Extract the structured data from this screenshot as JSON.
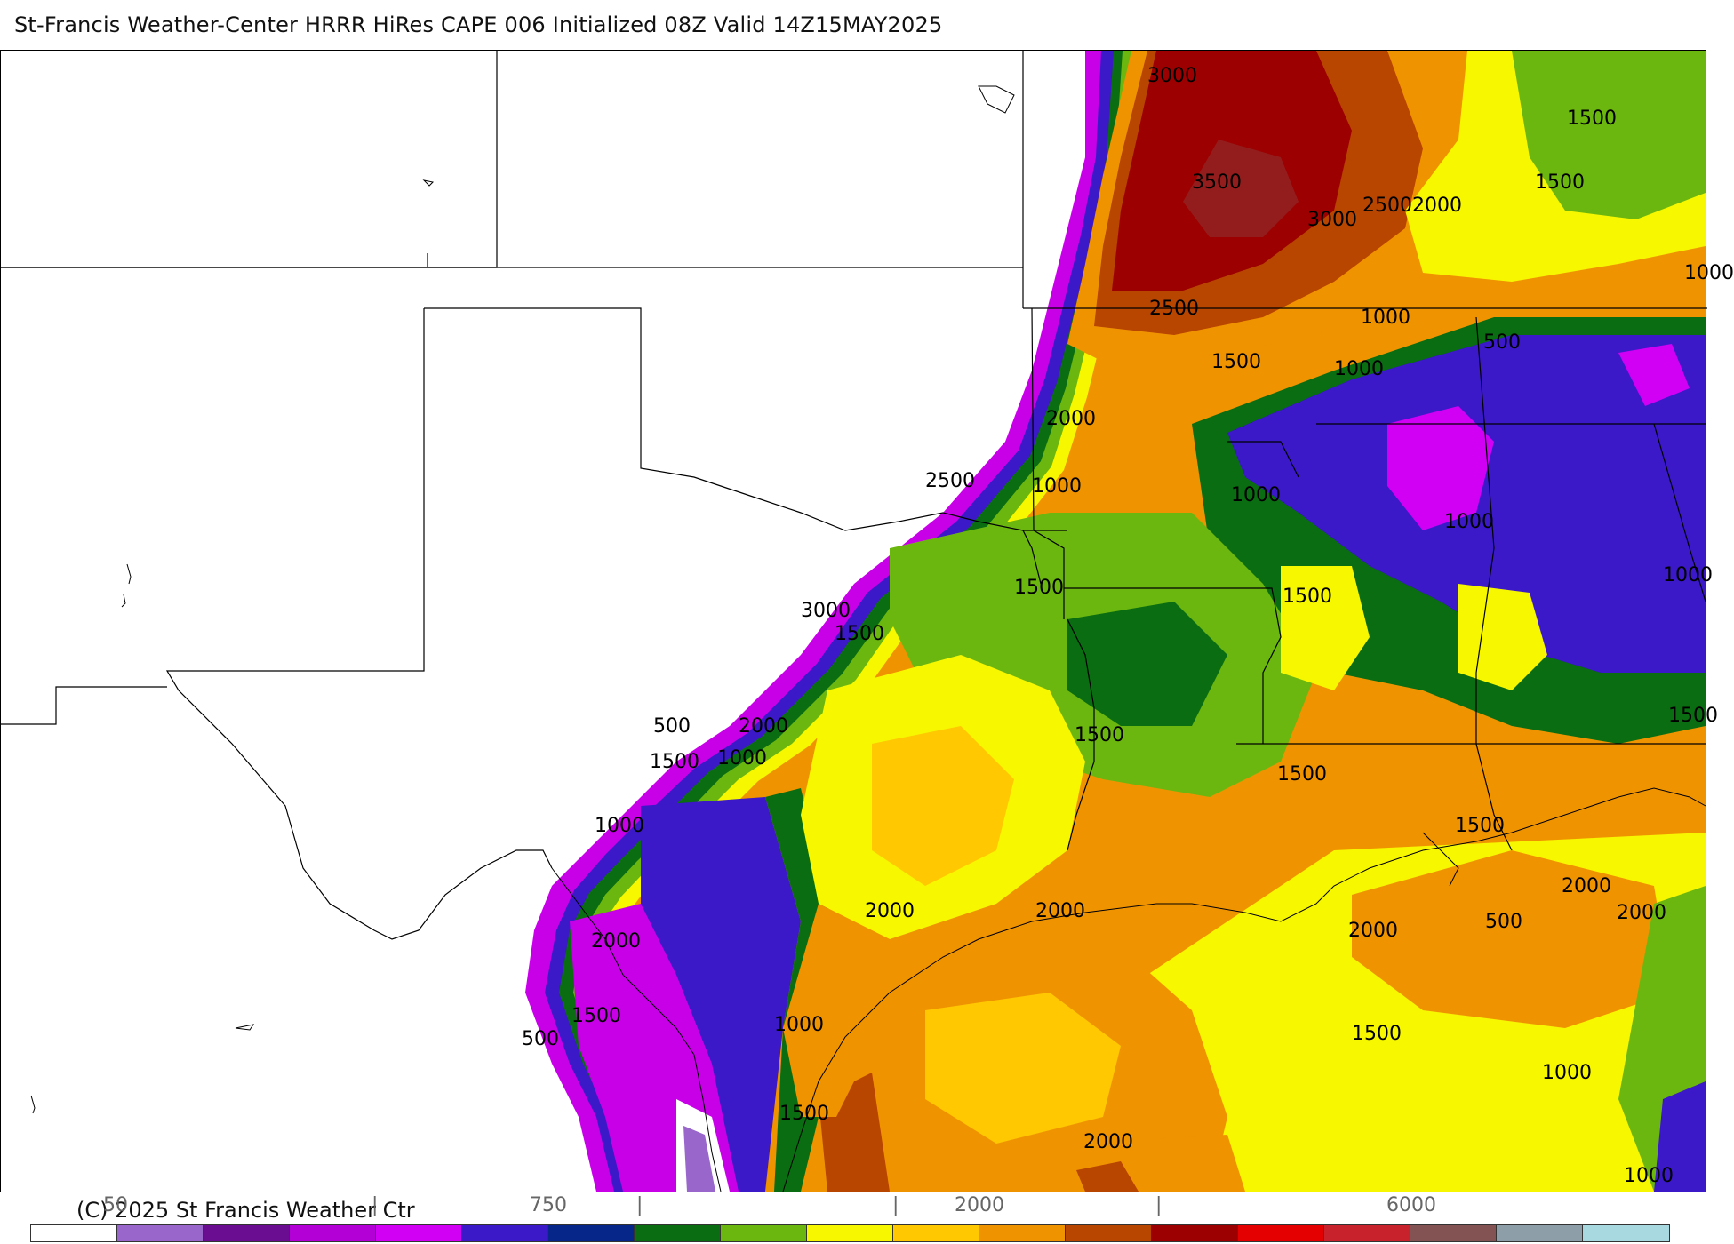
{
  "header": {
    "title": "St-Francis Weather-Center HRRR HiRes CAPE  006 Initialized  08Z Valid 14Z15MAY2025"
  },
  "map": {
    "product": "HRRR HiRes CAPE",
    "contour_labels": [
      {
        "text": "3000"
      },
      {
        "text": "3500"
      },
      {
        "text": "3000"
      },
      {
        "text": "2500"
      },
      {
        "text": "2000"
      },
      {
        "text": "1500"
      },
      {
        "text": "1500"
      },
      {
        "text": "1000"
      },
      {
        "text": "2500"
      },
      {
        "text": "1000"
      },
      {
        "text": "1000"
      },
      {
        "text": "1500"
      },
      {
        "text": "500"
      },
      {
        "text": "2000"
      },
      {
        "text": "1000"
      },
      {
        "text": "2500"
      },
      {
        "text": "1000"
      },
      {
        "text": "1000"
      },
      {
        "text": "1500"
      },
      {
        "text": "1500"
      },
      {
        "text": "3000"
      },
      {
        "text": "1500"
      },
      {
        "text": "1000"
      },
      {
        "text": "500"
      },
      {
        "text": "2000"
      },
      {
        "text": "1500"
      },
      {
        "text": "1000"
      },
      {
        "text": "1500"
      },
      {
        "text": "1500"
      },
      {
        "text": "1500"
      },
      {
        "text": "1000"
      },
      {
        "text": "1500"
      },
      {
        "text": "2000"
      },
      {
        "text": "2000"
      },
      {
        "text": "2000"
      },
      {
        "text": "2000"
      },
      {
        "text": "2000"
      },
      {
        "text": "500"
      },
      {
        "text": "2000"
      },
      {
        "text": "1000"
      },
      {
        "text": "500"
      },
      {
        "text": "1500"
      },
      {
        "text": "1000"
      },
      {
        "text": "1500"
      },
      {
        "text": "1500"
      },
      {
        "text": "2000"
      },
      {
        "text": "1000"
      }
    ]
  },
  "footer": {
    "copyright": "(C) 2025 St Francis Weather Ctr",
    "tick_labels": [
      "50",
      "|",
      "750",
      "|",
      "|",
      "2000",
      "|",
      "6000"
    ]
  },
  "legend": {
    "colors": [
      "#ffffff",
      "#9966cc",
      "#6a0d91",
      "#b300d6",
      "#d100f5",
      "#3b18c8",
      "#06268a",
      "#0a6d12",
      "#6cb70f",
      "#f7f700",
      "#ffc800",
      "#f09300",
      "#b84500",
      "#9c0000",
      "#e40000",
      "#c8232c",
      "#835252",
      "#8e9ea8",
      "#a8d8e0"
    ]
  }
}
